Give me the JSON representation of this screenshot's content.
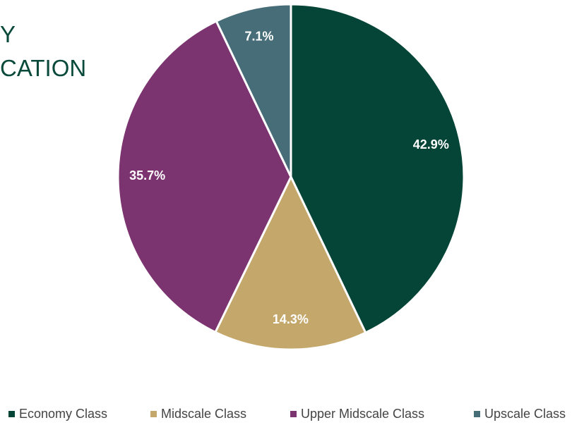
{
  "chart_data": {
    "type": "pie",
    "title_lines": [
      "Y",
      "CATION"
    ],
    "categories": [
      "Economy Class",
      "Midscale Class",
      "Upper Midscale Class",
      "Upscale Class"
    ],
    "values": [
      42.9,
      14.3,
      35.7,
      7.1
    ],
    "value_labels": [
      "42.9%",
      "14.3%",
      "35.7%",
      "7.1%"
    ],
    "colors": [
      "#054537",
      "#c4a76b",
      "#7b346f",
      "#476e78"
    ],
    "legend": "bottom"
  }
}
